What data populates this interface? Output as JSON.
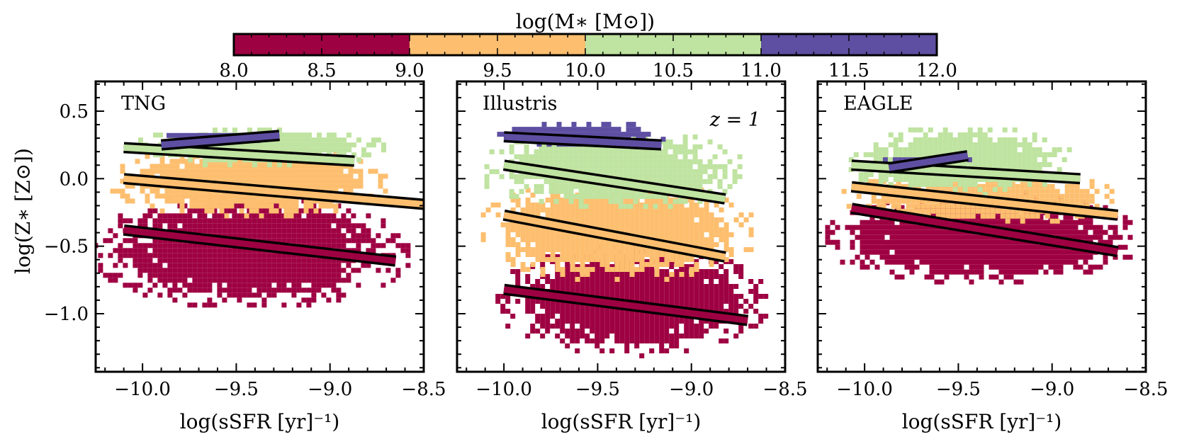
{
  "colorbar": {
    "label": "log(M∗ [M⊙])",
    "ticks": [
      "8.0",
      "8.5",
      "9.0",
      "9.5",
      "10.0",
      "10.5",
      "11.0",
      "11.5",
      "12.0"
    ],
    "bins": [
      {
        "range": [
          8.0,
          9.0
        ],
        "color": "#9e0142"
      },
      {
        "range": [
          9.0,
          10.0
        ],
        "color": "#fdbf6f"
      },
      {
        "range": [
          10.0,
          11.0
        ],
        "color": "#bfe3a0"
      },
      {
        "range": [
          11.0,
          12.0
        ],
        "color": "#5e4fa2"
      }
    ]
  },
  "axes": {
    "xlabel": "log(sSFR [yr]⁻¹)",
    "ylabel": "log(Z∗ [Z⊙])",
    "xlim": [
      -10.25,
      -8.5
    ],
    "ylim": [
      -1.43,
      0.72
    ],
    "xticks": [
      "−10.0",
      "−9.5",
      "−9.0",
      "−8.5"
    ],
    "yticks": [
      "0.5",
      "0.0",
      "−0.5",
      "−1.0"
    ]
  },
  "chart_data": [
    {
      "type": "scatter",
      "panel": "TNG",
      "annotation": "",
      "title": "TNG",
      "xlabel": "log(sSFR [yr]⁻¹)",
      "ylabel": "log(Z∗ [Z⊙])",
      "series": [
        {
          "name": "8.0-9.0",
          "color": "#9e0142",
          "cloud": {
            "x": [
              -10.07,
              -8.78
            ],
            "y": [
              -0.85,
              -0.17
            ]
          },
          "fit": [
            [
              -10.1,
              -0.38
            ],
            [
              -8.65,
              -0.61
            ]
          ]
        },
        {
          "name": "9.0-10.0",
          "color": "#fdbf6f",
          "cloud": {
            "x": [
              -10.0,
              -8.85
            ],
            "y": [
              -0.22,
              0.22
            ]
          },
          "fit": [
            [
              -10.1,
              0.0
            ],
            [
              -8.5,
              -0.19
            ]
          ]
        },
        {
          "name": "10.0-11.0",
          "color": "#bfe3a0",
          "cloud": {
            "x": [
              -9.92,
              -8.88
            ],
            "y": [
              0.14,
              0.36
            ]
          },
          "fit": [
            [
              -10.1,
              0.23
            ],
            [
              -8.87,
              0.13
            ]
          ]
        },
        {
          "name": "11.0-12.0",
          "color": "#5e4fa2",
          "cloud": {
            "x": [
              -9.85,
              -9.35
            ],
            "y": [
              0.3,
              0.36
            ]
          },
          "fit": [
            [
              -9.9,
              0.25
            ],
            [
              -9.27,
              0.32
            ]
          ]
        }
      ]
    },
    {
      "type": "scatter",
      "panel": "Illustris",
      "annotation": "z = 1",
      "title": "Illustris",
      "xlabel": "log(sSFR [yr]⁻¹)",
      "ylabel": "",
      "series": [
        {
          "name": "8.0-9.0",
          "color": "#9e0142",
          "cloud": {
            "x": [
              -9.88,
              -8.78
            ],
            "y": [
              -1.2,
              -0.57
            ]
          },
          "fit": [
            [
              -10.0,
              -0.82
            ],
            [
              -8.7,
              -1.05
            ]
          ]
        },
        {
          "name": "9.0-10.0",
          "color": "#fdbf6f",
          "cloud": {
            "x": [
              -9.98,
              -8.85
            ],
            "y": [
              -0.67,
              -0.07
            ]
          },
          "fit": [
            [
              -10.0,
              -0.27
            ],
            [
              -8.82,
              -0.58
            ]
          ]
        },
        {
          "name": "10.0-11.0",
          "color": "#bfe3a0",
          "cloud": {
            "x": [
              -9.97,
              -8.9
            ],
            "y": [
              -0.15,
              0.32
            ]
          },
          "fit": [
            [
              -10.0,
              0.1
            ],
            [
              -8.82,
              -0.15
            ]
          ]
        },
        {
          "name": "11.0-12.0",
          "color": "#5e4fa2",
          "cloud": {
            "x": [
              -9.98,
              -9.25
            ],
            "y": [
              0.27,
              0.42
            ]
          },
          "fit": [
            [
              -10.0,
              0.31
            ],
            [
              -9.16,
              0.25
            ]
          ]
        }
      ]
    },
    {
      "type": "scatter",
      "panel": "EAGLE",
      "annotation": "",
      "title": "EAGLE",
      "xlabel": "log(sSFR [yr]⁻¹)",
      "ylabel": "",
      "series": [
        {
          "name": "8.0-9.0",
          "color": "#9e0142",
          "cloud": {
            "x": [
              -10.02,
              -8.75
            ],
            "y": [
              -0.7,
              -0.15
            ]
          },
          "fit": [
            [
              -10.07,
              -0.22
            ],
            [
              -8.65,
              -0.54
            ]
          ]
        },
        {
          "name": "9.0-10.0",
          "color": "#fdbf6f",
          "cloud": {
            "x": [
              -9.95,
              -8.8
            ],
            "y": [
              -0.28,
              0.03
            ]
          },
          "fit": [
            [
              -10.07,
              -0.06
            ],
            [
              -8.65,
              -0.27
            ]
          ]
        },
        {
          "name": "10.0-11.0",
          "color": "#bfe3a0",
          "cloud": {
            "x": [
              -9.95,
              -9.05
            ],
            "y": [
              -0.06,
              0.35
            ]
          },
          "fit": [
            [
              -10.07,
              0.1
            ],
            [
              -8.85,
              0.0
            ]
          ]
        },
        {
          "name": "11.0-12.0",
          "color": "#5e4fa2",
          "cloud": {
            "x": [
              -9.85,
              -9.5
            ],
            "y": [
              0.12,
              0.18
            ]
          },
          "fit": [
            [
              -9.87,
              0.08
            ],
            [
              -9.45,
              0.17
            ]
          ]
        }
      ]
    }
  ]
}
